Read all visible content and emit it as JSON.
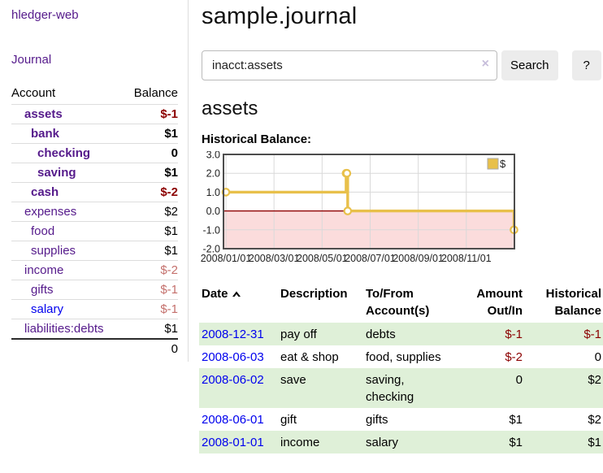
{
  "app": {
    "brand": "hledger-web"
  },
  "colors": {
    "link_purple": "#551a8b",
    "link_blue": "#0000ee",
    "negative_strong": "#8b0000",
    "negative_soft": "#c4706c",
    "row_green": "#dff0d8",
    "chart_line_gold": "#e8c04a",
    "chart_negative_fill": "#fbdcdc",
    "chart_zero_line": "#900000",
    "button_gray": "#ececec"
  },
  "sidebar": {
    "journal_link": "Journal",
    "accounts_header": {
      "account": "Account",
      "balance": "Balance"
    },
    "accounts": [
      {
        "name": "assets",
        "depth": 1,
        "bold": true,
        "link_tone": "visited",
        "balance": "$-1",
        "balance_tone": "neg"
      },
      {
        "name": "bank",
        "depth": 2,
        "bold": true,
        "link_tone": "visited",
        "balance": "$1",
        "balance_tone": "normal"
      },
      {
        "name": "checking",
        "depth": 3,
        "bold": true,
        "link_tone": "visited",
        "balance": "0",
        "balance_tone": "normal"
      },
      {
        "name": "saving",
        "depth": 3,
        "bold": true,
        "link_tone": "visited",
        "balance": "$1",
        "balance_tone": "normal"
      },
      {
        "name": "cash",
        "depth": 2,
        "bold": true,
        "link_tone": "visited",
        "balance": "$-2",
        "balance_tone": "neg"
      },
      {
        "name": "expenses",
        "depth": 1,
        "bold": false,
        "link_tone": "visited",
        "balance": "$2",
        "balance_tone": "normal"
      },
      {
        "name": "food",
        "depth": 2,
        "bold": false,
        "link_tone": "visited",
        "balance": "$1",
        "balance_tone": "normal"
      },
      {
        "name": "supplies",
        "depth": 2,
        "bold": false,
        "link_tone": "visited",
        "balance": "$1",
        "balance_tone": "normal"
      },
      {
        "name": "income",
        "depth": 1,
        "bold": false,
        "link_tone": "visited",
        "balance": "$-2",
        "balance_tone": "neg-soft"
      },
      {
        "name": "gifts",
        "depth": 2,
        "bold": false,
        "link_tone": "visited",
        "balance": "$-1",
        "balance_tone": "neg-soft"
      },
      {
        "name": "salary",
        "depth": 2,
        "bold": false,
        "link_tone": "unvisited",
        "balance": "$-1",
        "balance_tone": "neg-soft"
      },
      {
        "name": "liabilities:debts",
        "depth": 1,
        "bold": false,
        "link_tone": "visited",
        "balance": "$1",
        "balance_tone": "normal"
      }
    ],
    "total": "0"
  },
  "main": {
    "title": "sample.journal",
    "search": {
      "value": "inacct:assets",
      "clear_icon": "×",
      "button_label": "Search",
      "help_label": "?"
    },
    "account_heading": "assets",
    "chart_title": "Historical Balance:"
  },
  "chart_data": {
    "type": "line",
    "step": true,
    "title": "Historical Balance",
    "legend": "$",
    "legend_position": "top-right",
    "grid": true,
    "ylim": [
      -2,
      3
    ],
    "yticks": [
      [
        "3.0",
        3
      ],
      [
        "2.0",
        2
      ],
      [
        "1.0",
        1
      ],
      [
        "0.0",
        0
      ],
      [
        "-1.0",
        -1
      ],
      [
        "-2.0",
        -2
      ]
    ],
    "xticks": [
      "2008/01/01",
      "2008/03/01",
      "2008/05/01",
      "2008/07/01",
      "2008/09/01",
      "2008/11/01"
    ],
    "series": [
      {
        "name": "$",
        "points": [
          [
            "2008/01/01",
            1
          ],
          [
            "2008/06/01",
            2
          ],
          [
            "2008/06/02",
            2
          ],
          [
            "2008/06/03",
            0
          ],
          [
            "2008/12/31",
            -1
          ]
        ]
      }
    ]
  },
  "register": {
    "headers": {
      "date": "Date",
      "description": "Description",
      "accounts": "To/From Account(s)",
      "amount": "Amount Out/In",
      "balance": "Historical Balance"
    },
    "rows": [
      {
        "date": "2008-12-31",
        "description": "pay off",
        "accounts": "debts",
        "amount": "$-1",
        "amount_negative": true,
        "balance": "$-1",
        "balance_negative": true
      },
      {
        "date": "2008-06-03",
        "description": "eat & shop",
        "accounts": "food, supplies",
        "amount": "$-2",
        "amount_negative": true,
        "balance": "0",
        "balance_negative": false
      },
      {
        "date": "2008-06-02",
        "description": "save",
        "accounts": "saving,\nchecking",
        "amount": "0",
        "amount_negative": false,
        "balance": "$2",
        "balance_negative": false
      },
      {
        "date": "2008-06-01",
        "description": "gift",
        "accounts": "gifts",
        "amount": "$1",
        "amount_negative": false,
        "balance": "$2",
        "balance_negative": false
      },
      {
        "date": "2008-01-01",
        "description": "income",
        "accounts": "salary",
        "amount": "$1",
        "amount_negative": false,
        "balance": "$1",
        "balance_negative": false
      }
    ]
  }
}
